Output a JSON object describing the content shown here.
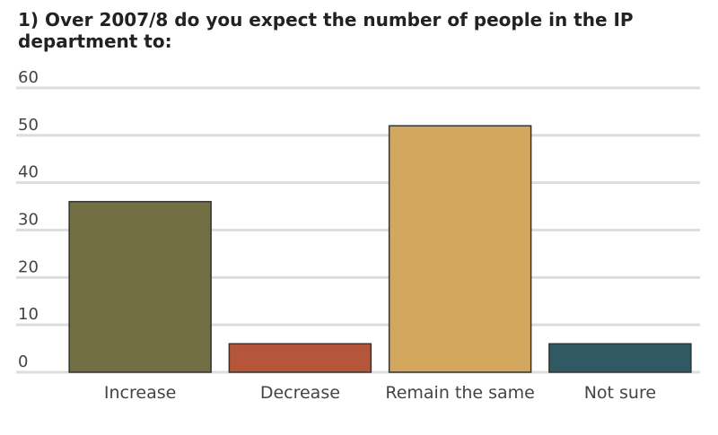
{
  "chart_data": {
    "type": "bar",
    "title": "1)  Over 2007/8 do you expect the number of people in the IP department to:",
    "categories": [
      "Increase",
      "Decrease",
      "Remain the same",
      "Not sure"
    ],
    "values": [
      36,
      6,
      52,
      6
    ],
    "colors": [
      "#736f45",
      "#b5563a",
      "#d3a85e",
      "#2f5a63"
    ],
    "ylim": [
      0,
      60
    ],
    "yticks": [
      0,
      10,
      20,
      30,
      40,
      50,
      60
    ],
    "grid": true
  }
}
